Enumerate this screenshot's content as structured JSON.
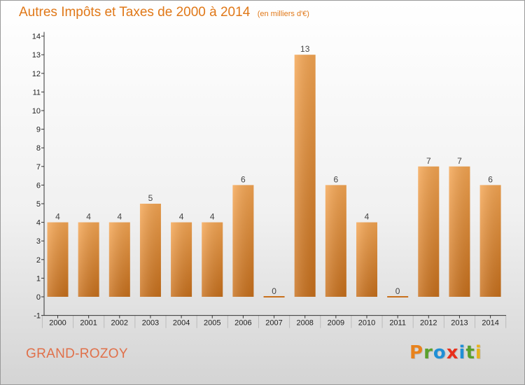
{
  "header": {
    "title": "Autres Impôts et Taxes de 2000 à 2014",
    "subtitle": "(en milliers d'€)"
  },
  "footer": {
    "place": "GRAND-ROZOY",
    "logo_letters": [
      "P",
      "r",
      "o",
      "x",
      "i",
      "t",
      "i"
    ],
    "logo_colors": [
      "#e8821c",
      "#5aa02c",
      "#1f8fd6",
      "#e8301c",
      "#1f8fd6",
      "#5aa02c",
      "#e8b21c"
    ]
  },
  "colors": {
    "title": "#e07818",
    "bar_light": "#f5a653",
    "bar_dark": "#c8701c",
    "axis": "#333333",
    "tick_label": "#222222",
    "value_label": "#444444"
  },
  "chart_data": {
    "type": "bar",
    "title": "Autres Impôts et Taxes de 2000 à 2014",
    "subtitle": "(en milliers d'€)",
    "xlabel": "",
    "ylabel": "",
    "categories": [
      "2000",
      "2001",
      "2002",
      "2003",
      "2004",
      "2005",
      "2006",
      "2007",
      "2008",
      "2009",
      "2010",
      "2011",
      "2012",
      "2013",
      "2014"
    ],
    "values": [
      4,
      4,
      4,
      5,
      4,
      4,
      6,
      0,
      13,
      6,
      4,
      0,
      7,
      7,
      6
    ],
    "value_labels": [
      "4",
      "4",
      "4",
      "5",
      "4",
      "4",
      "6",
      "0",
      "13",
      "6",
      "4",
      "0",
      "7",
      "7",
      "6"
    ],
    "ylim": [
      -1,
      14
    ],
    "yticks": [
      -1,
      0,
      1,
      2,
      3,
      4,
      5,
      6,
      7,
      8,
      9,
      10,
      11,
      12,
      13,
      14
    ],
    "grid": false,
    "legend": "none"
  }
}
